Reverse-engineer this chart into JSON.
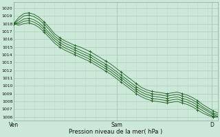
{
  "title": "",
  "xlabel": "Pression niveau de la mer( hPa )",
  "bg_color": "#cce8d8",
  "plot_bg_color": "#cce8d8",
  "grid_color_major": "#aaccb8",
  "grid_color_minor": "#bbddc8",
  "line_color": "#1a5c1a",
  "ylim": [
    1005.5,
    1020.8
  ],
  "yticks": [
    1006,
    1007,
    1008,
    1009,
    1010,
    1011,
    1012,
    1013,
    1014,
    1015,
    1016,
    1017,
    1018,
    1019,
    1020
  ],
  "xtick_labels": [
    "Ven",
    "Sam",
    "D"
  ],
  "xtick_positions": [
    0.0,
    0.505,
    0.97
  ],
  "x_minor_ticks": [
    0.0,
    0.05,
    0.1,
    0.15,
    0.2,
    0.25,
    0.3,
    0.35,
    0.4,
    0.45,
    0.505,
    0.55,
    0.6,
    0.65,
    0.7,
    0.75,
    0.8,
    0.85,
    0.9,
    0.95,
    1.0
  ],
  "lines": [
    [
      1018.0,
      1018.8,
      1019.3,
      1019.4,
      1019.2,
      1018.8,
      1018.2,
      1017.5,
      1016.7,
      1016.2,
      1015.8,
      1015.5,
      1015.2,
      1015.0,
      1014.7,
      1014.4,
      1014.0,
      1013.6,
      1013.2,
      1012.8,
      1012.3,
      1011.8,
      1011.3,
      1010.8,
      1010.3,
      1009.8,
      1009.5,
      1009.3,
      1009.2,
      1009.1,
      1009.0,
      1009.1,
      1009.2,
      1009.0,
      1008.8,
      1008.5,
      1008.1,
      1007.6,
      1007.2,
      1006.8,
      1006.5
    ],
    [
      1018.0,
      1018.5,
      1019.0,
      1019.1,
      1018.9,
      1018.5,
      1017.9,
      1017.2,
      1016.4,
      1015.9,
      1015.5,
      1015.2,
      1014.9,
      1014.6,
      1014.3,
      1014.0,
      1013.6,
      1013.2,
      1012.8,
      1012.4,
      1011.9,
      1011.4,
      1010.9,
      1010.4,
      1009.9,
      1009.5,
      1009.2,
      1009.0,
      1008.9,
      1008.8,
      1008.7,
      1008.8,
      1008.9,
      1008.7,
      1008.5,
      1008.2,
      1007.8,
      1007.3,
      1006.9,
      1006.5,
      1006.3
    ],
    [
      1018.0,
      1018.2,
      1018.6,
      1018.7,
      1018.5,
      1018.1,
      1017.5,
      1016.8,
      1016.1,
      1015.6,
      1015.2,
      1014.9,
      1014.6,
      1014.3,
      1014.0,
      1013.7,
      1013.3,
      1012.9,
      1012.5,
      1012.1,
      1011.6,
      1011.1,
      1010.6,
      1010.1,
      1009.6,
      1009.2,
      1008.9,
      1008.7,
      1008.6,
      1008.5,
      1008.4,
      1008.5,
      1008.6,
      1008.4,
      1008.2,
      1007.9,
      1007.5,
      1007.1,
      1006.7,
      1006.3,
      1006.1
    ],
    [
      1018.0,
      1018.0,
      1018.3,
      1018.4,
      1018.2,
      1017.8,
      1017.2,
      1016.5,
      1015.8,
      1015.3,
      1014.9,
      1014.6,
      1014.3,
      1014.0,
      1013.7,
      1013.4,
      1013.0,
      1012.6,
      1012.2,
      1011.8,
      1011.3,
      1010.8,
      1010.3,
      1009.8,
      1009.3,
      1008.9,
      1008.6,
      1008.4,
      1008.3,
      1008.2,
      1008.1,
      1008.2,
      1008.3,
      1008.1,
      1007.9,
      1007.6,
      1007.2,
      1006.8,
      1006.4,
      1006.1,
      1006.0
    ],
    [
      1018.0,
      1017.8,
      1018.0,
      1018.1,
      1017.9,
      1017.5,
      1016.9,
      1016.2,
      1015.5,
      1015.0,
      1014.6,
      1014.3,
      1014.0,
      1013.7,
      1013.4,
      1013.1,
      1012.7,
      1012.3,
      1011.9,
      1011.5,
      1011.0,
      1010.5,
      1010.0,
      1009.5,
      1009.0,
      1008.6,
      1008.3,
      1008.1,
      1008.0,
      1007.9,
      1007.8,
      1007.9,
      1008.0,
      1007.8,
      1007.6,
      1007.3,
      1006.9,
      1006.5,
      1006.2,
      1006.0,
      1006.0
    ]
  ],
  "ytick_fontsize": 4.5,
  "xtick_fontsize": 5.5,
  "xlabel_fontsize": 6.0
}
